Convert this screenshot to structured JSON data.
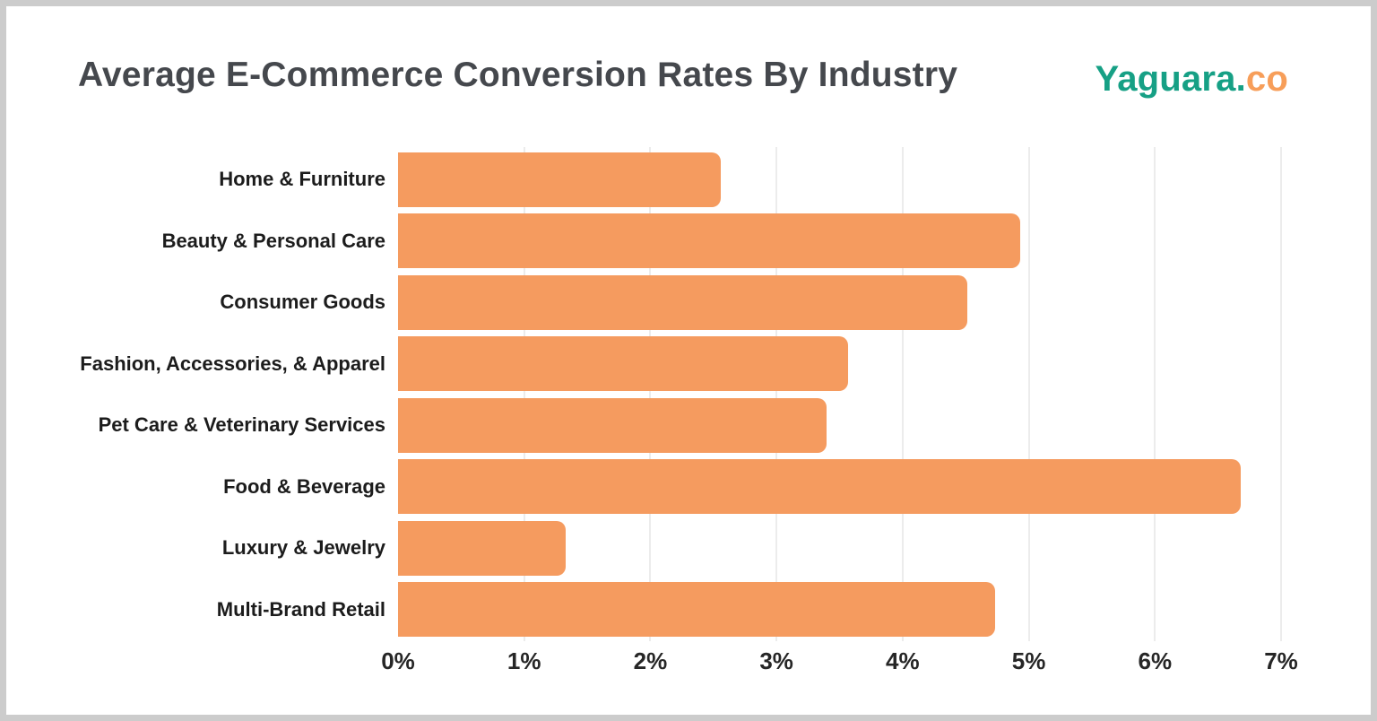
{
  "header": {
    "title": "Average E-Commerce Conversion Rates By Industry",
    "logo": {
      "primary": "Yaguara.",
      "secondary": "co"
    }
  },
  "chart_data": {
    "type": "bar",
    "orientation": "horizontal",
    "title": "Average E-Commerce Conversion Rates By Industry",
    "categories": [
      "Home & Furniture",
      "Beauty & Personal Care",
      "Consumer Goods",
      "Fashion, Accessories, & Apparel",
      "Pet Care & Veterinary Services",
      "Food & Beverage",
      "Luxury & Jewelry",
      "Multi-Brand Retail"
    ],
    "values": [
      2.56,
      4.93,
      4.51,
      3.57,
      3.4,
      6.68,
      1.33,
      4.73
    ],
    "unit": "%",
    "xlabel": "",
    "ylabel": "",
    "xlim": [
      0,
      7
    ],
    "x_ticks": [
      "0%",
      "1%",
      "2%",
      "3%",
      "4%",
      "5%",
      "6%",
      "7%"
    ],
    "grid": "vertical-only",
    "legend": "none"
  },
  "colors": {
    "accent": "#F59B5F",
    "grid": "#ECECEC",
    "border": "#CCCCCC",
    "title": "#45484D",
    "logo_green": "#16A085",
    "logo_orange": "#F79E59",
    "label": "#1C1C1C",
    "axis": "#262626"
  }
}
